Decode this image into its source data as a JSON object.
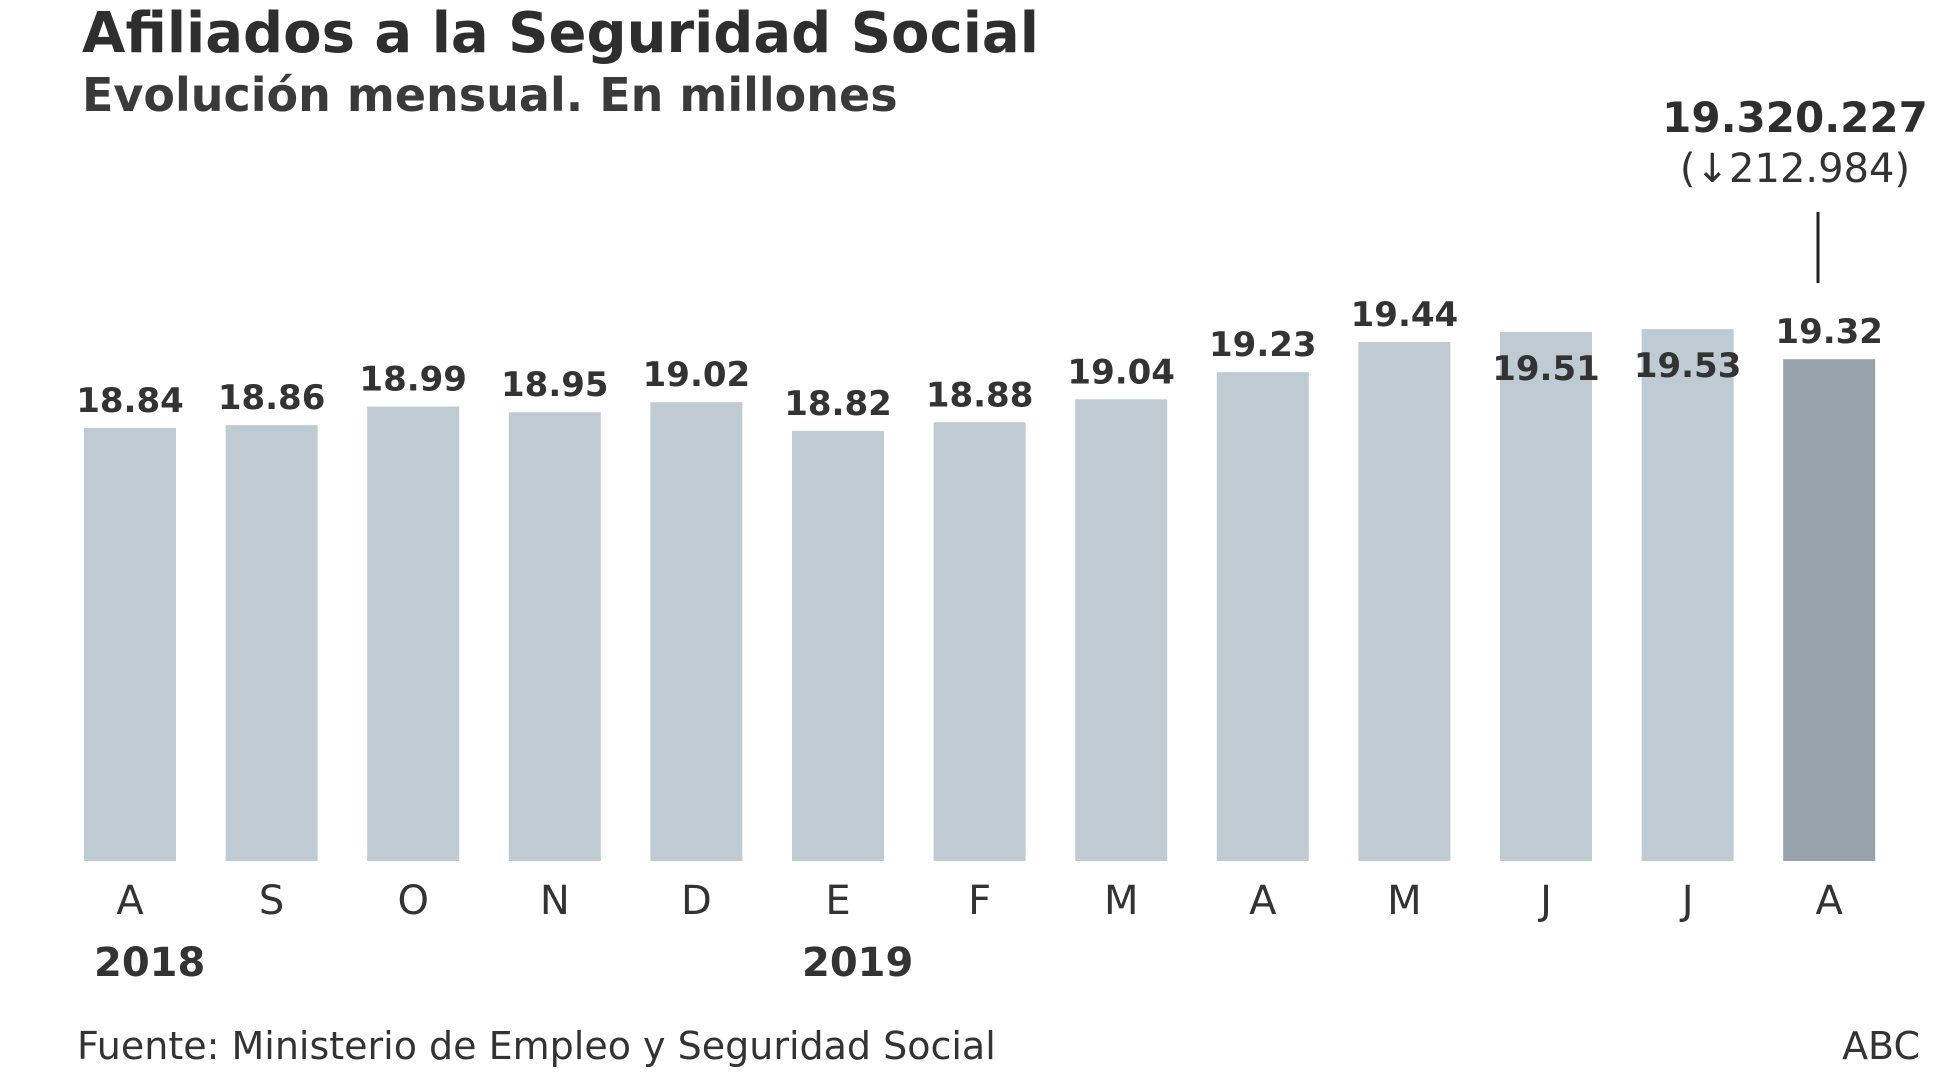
{
  "title": "Afiliados a la Seguridad Social",
  "subtitle": "Evolución mensual. En millones",
  "callout": {
    "value": "19.320.227",
    "change_open": "(",
    "change_arrow": "↓",
    "change_value": "212.984)"
  },
  "source": "Fuente: Ministerio de Empleo y Seguridad Social",
  "credit": "ABC",
  "colors": {
    "bar": "#bfcbd3",
    "bar_highlight": "#97a3aa",
    "text": "#333333"
  },
  "chart_data": {
    "type": "bar",
    "categories": [
      "A",
      "S",
      "O",
      "N",
      "D",
      "E",
      "F",
      "M",
      "A",
      "M",
      "J",
      "J",
      "A"
    ],
    "values": [
      18.84,
      18.86,
      18.99,
      18.95,
      19.02,
      18.82,
      18.88,
      19.04,
      19.23,
      19.44,
      19.51,
      19.53,
      19.32
    ],
    "value_labels": [
      "18.84",
      "18.86",
      "18.99",
      "18.95",
      "19.02",
      "18.82",
      "18.88",
      "19.04",
      "19.23",
      "19.44",
      "19.51",
      "19.53",
      "19.32"
    ],
    "labels_inside": [
      false,
      false,
      false,
      false,
      false,
      false,
      false,
      false,
      false,
      false,
      true,
      true,
      false
    ],
    "highlight_index": 12,
    "year_labels": [
      {
        "index": 0,
        "label": "2018"
      },
      {
        "index": 5,
        "label": "2019"
      }
    ],
    "xlabel": "",
    "ylabel": "",
    "grid": false,
    "legend": "none"
  }
}
